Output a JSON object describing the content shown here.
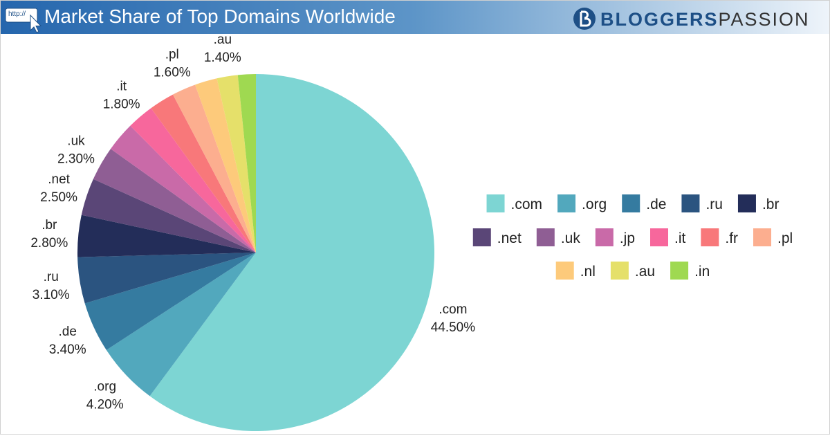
{
  "header": {
    "icon_text": "http://",
    "brand": [
      "BLOGGERS",
      "PASSION"
    ]
  },
  "chart_data": {
    "type": "pie",
    "title": "Market Share of Top Domains Worldwide",
    "categories": [
      ".com",
      ".org",
      ".de",
      ".ru",
      ".br",
      ".net",
      ".uk",
      ".jp",
      ".it",
      ".fr",
      ".pl",
      ".nl",
      ".au",
      ".in"
    ],
    "values": [
      44.5,
      4.2,
      3.4,
      3.1,
      2.8,
      2.5,
      2.3,
      2.0,
      1.8,
      1.7,
      1.6,
      1.5,
      1.4,
      1.2
    ],
    "value_labels": [
      "44.50%",
      "4.20%",
      "3.40%",
      "3.10%",
      "2.80%",
      "2.50%",
      "2.30%",
      null,
      "1.80%",
      null,
      "1.60%",
      null,
      "1.40%",
      null
    ],
    "colors": [
      "#7dd5d3",
      "#52a8bd",
      "#357ba0",
      "#2b5480",
      "#232d59",
      "#5a4677",
      "#8f5e94",
      "#c96aa8",
      "#f7679c",
      "#f8787a",
      "#fcae8f",
      "#fdca7b",
      "#e5e06a",
      "#9fd951"
    ],
    "legend": "right"
  }
}
